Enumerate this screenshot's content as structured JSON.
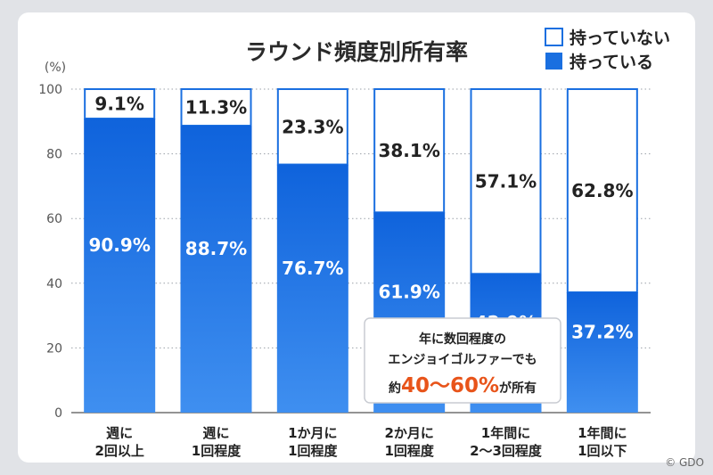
{
  "chart_data": {
    "type": "bar",
    "stacked": true,
    "title": "ラウンド頻度別所有率",
    "ylabel": "(%)",
    "ylim": [
      0,
      100
    ],
    "yticks": [
      0,
      20,
      40,
      60,
      80,
      100
    ],
    "grid": true,
    "legend_position": "top-right",
    "categories": [
      [
        "週に",
        "2回以上"
      ],
      [
        "週に",
        "1回程度"
      ],
      [
        "1か月に",
        "1回程度"
      ],
      [
        "2か月に",
        "1回程度"
      ],
      [
        "1年間に",
        "2〜3回程度"
      ],
      [
        "1年間に",
        "1回以下"
      ]
    ],
    "series": [
      {
        "name": "持っている",
        "color": "#1a6fe0",
        "values": [
          90.9,
          88.7,
          76.7,
          61.9,
          42.9,
          37.2
        ],
        "labels": [
          "90.9%",
          "88.7%",
          "76.7%",
          "61.9%",
          "42.9%",
          "37.2%"
        ]
      },
      {
        "name": "持っていない",
        "color": "#ffffff",
        "values": [
          9.1,
          11.3,
          23.3,
          38.1,
          57.1,
          62.8
        ],
        "labels": [
          "9.1%",
          "11.3%",
          "23.3%",
          "38.1%",
          "57.1%",
          "62.8%"
        ]
      }
    ],
    "annotation": {
      "line1": "年に数回程度の",
      "line2": "エンジョイゴルファーでも",
      "line3_prefix": "約",
      "line3_highlight": "40〜60%",
      "line3_suffix": "が所有"
    }
  },
  "credit": "© GDO"
}
